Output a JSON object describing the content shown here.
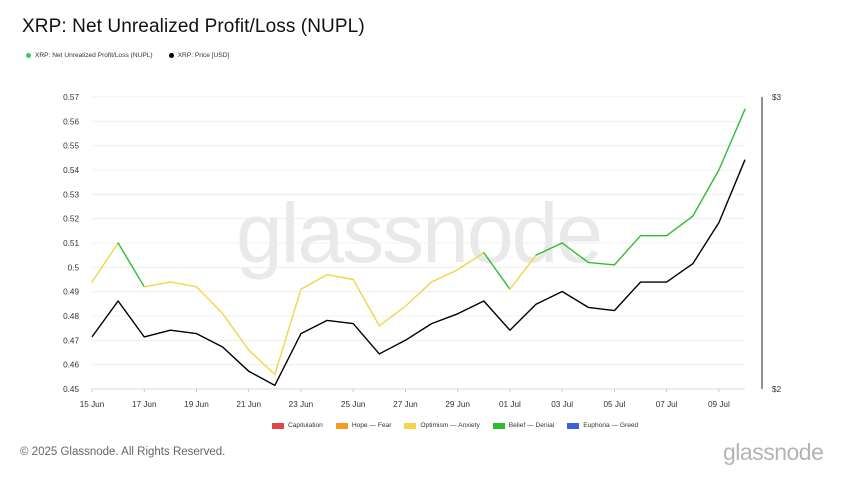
{
  "header": {
    "title": "XRP: Net Unrealized Profit/Loss (NUPL)"
  },
  "legend_top": [
    {
      "label": "XRP: Net Unrealized Profit/Loss (NUPL)",
      "color": "#2ecc71"
    },
    {
      "label": "XRP: Price [USD]",
      "color": "#000000"
    }
  ],
  "legend_bottom": [
    {
      "label": "Capitulation",
      "color": "#e04848"
    },
    {
      "label": "Hope — Fear",
      "color": "#f59a23"
    },
    {
      "label": "Optimism — Anxiety",
      "color": "#f1d64c"
    },
    {
      "label": "Belief — Denial",
      "color": "#2fbd2f"
    },
    {
      "label": "Euphoria — Greed",
      "color": "#3a63d8"
    }
  ],
  "watermark": "glassnode",
  "footer": {
    "copyright": "© 2025 Glassnode. All Rights Reserved.",
    "brand": "glassnode"
  },
  "chart_data": {
    "type": "line",
    "x": [
      "15 Jun",
      "16 Jun",
      "17 Jun",
      "18 Jun",
      "19 Jun",
      "20 Jun",
      "21 Jun",
      "22 Jun",
      "23 Jun",
      "24 Jun",
      "25 Jun",
      "26 Jun",
      "27 Jun",
      "28 Jun",
      "29 Jun",
      "30 Jun",
      "01 Jul",
      "02 Jul",
      "03 Jul",
      "04 Jul",
      "05 Jul",
      "06 Jul",
      "07 Jul",
      "08 Jul",
      "09 Jul",
      "10 Jul"
    ],
    "x_tick_labels": [
      "15 Jun",
      "17 Jun",
      "19 Jun",
      "21 Jun",
      "23 Jun",
      "25 Jun",
      "27 Jun",
      "29 Jun",
      "01 Jul",
      "03 Jul",
      "05 Jul",
      "07 Jul",
      "09 Jul"
    ],
    "left_axis": {
      "ylim": [
        0.45,
        0.57
      ],
      "ticks": [
        "0.57",
        "0.56",
        "0.55",
        "0.54",
        "0.53",
        "0.52",
        "0.51",
        "0.5",
        "0.49",
        "0.48",
        "0.47",
        "0.46",
        "0.45"
      ]
    },
    "right_axis": {
      "scale": "log",
      "ticks": [
        "$3",
        "$2"
      ]
    },
    "grid": "horizontal",
    "series": [
      {
        "name": "XRP: Net Unrealized Profit/Loss (NUPL)",
        "axis": "left",
        "values": [
          0.494,
          0.51,
          0.492,
          0.494,
          0.492,
          0.481,
          0.466,
          0.456,
          0.491,
          0.497,
          0.495,
          0.476,
          0.484,
          0.494,
          0.499,
          0.506,
          0.491,
          0.505,
          0.51,
          0.502,
          0.501,
          0.513,
          0.513,
          0.521,
          0.54,
          0.565
        ],
        "zones": [
          "Optimism — Anxiety",
          "Belief — Denial",
          "Optimism — Anxiety",
          "Optimism — Anxiety",
          "Optimism — Anxiety",
          "Optimism — Anxiety",
          "Optimism — Anxiety",
          "Optimism — Anxiety",
          "Optimism — Anxiety",
          "Optimism — Anxiety",
          "Optimism — Anxiety",
          "Optimism — Anxiety",
          "Optimism — Anxiety",
          "Optimism — Anxiety",
          "Optimism — Anxiety",
          "Belief — Denial",
          "Optimism — Anxiety",
          "Belief — Denial",
          "Belief — Denial",
          "Belief — Denial",
          "Belief — Denial",
          "Belief — Denial",
          "Belief — Denial",
          "Belief — Denial",
          "Belief — Denial",
          "Belief — Denial"
        ]
      },
      {
        "name": "XRP: Price [USD]",
        "axis": "right",
        "values": [
          2.15,
          2.26,
          2.15,
          2.17,
          2.16,
          2.12,
          2.05,
          2.01,
          2.16,
          2.2,
          2.19,
          2.1,
          2.14,
          2.19,
          2.22,
          2.26,
          2.17,
          2.25,
          2.29,
          2.24,
          2.23,
          2.32,
          2.32,
          2.38,
          2.52,
          2.75
        ]
      }
    ],
    "zone_colors": {
      "Capitulation": "#e04848",
      "Hope — Fear": "#f59a23",
      "Optimism — Anxiety": "#f1d64c",
      "Belief — Denial": "#2fbd2f",
      "Euphoria — Greed": "#3a63d8"
    },
    "price_color": "#000000"
  }
}
